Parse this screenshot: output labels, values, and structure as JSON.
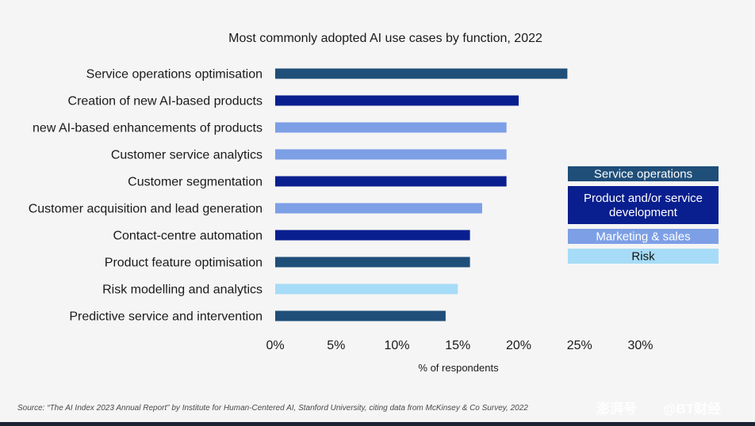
{
  "chart_data": {
    "type": "bar",
    "orientation": "horizontal",
    "title": "Most commonly adopted AI use cases by function, 2022",
    "xlabel": "% of respondents",
    "ylabel": "",
    "xlim": [
      0,
      30
    ],
    "x_ticks": [
      "0%",
      "5%",
      "10%",
      "15%",
      "20%",
      "25%",
      "30%"
    ],
    "grid": false,
    "categories": [
      "Service operations optimisation",
      "Creation of new AI-based products",
      "new AI-based enhancements of products",
      "Customer service analytics",
      "Customer segmentation",
      "Customer acquisition and lead generation",
      "Contact-centre automation",
      "Product feature optimisation",
      "Risk modelling and analytics",
      "Predictive service and intervention"
    ],
    "values": [
      24,
      20,
      19,
      19,
      19,
      17,
      16,
      16,
      15,
      14
    ],
    "functions": [
      "Service operations",
      "Product and/or service development",
      "Marketing & sales",
      "Marketing & sales",
      "Product and/or service development",
      "Marketing & sales",
      "Product and/or service development",
      "Service operations",
      "Risk",
      "Service operations"
    ],
    "legend": {
      "position": "right",
      "entries": [
        {
          "label": "Service operations",
          "lines": [
            "Service operations"
          ],
          "color": "#1f4e79",
          "text_color": "#ffffff"
        },
        {
          "label": "Product and/or service development",
          "lines": [
            "Product and/or service",
            "development"
          ],
          "color": "#0a1f8f",
          "text_color": "#ffffff"
        },
        {
          "label": "Marketing & sales",
          "lines": [
            "Marketing & sales"
          ],
          "color": "#7d9fe6",
          "text_color": "#ffffff"
        },
        {
          "label": "Risk",
          "lines": [
            "Risk"
          ],
          "color": "#a6dcf7",
          "text_color": "#111111"
        }
      ]
    },
    "source": "Source: “The AI Index 2023 Annual Report” by Institute for Human-Centered AI, Stanford University, citing data from McKinsey & Co Survey, 2022"
  },
  "watermark": {
    "left": "澎湃号",
    "right": "@BT财经"
  }
}
